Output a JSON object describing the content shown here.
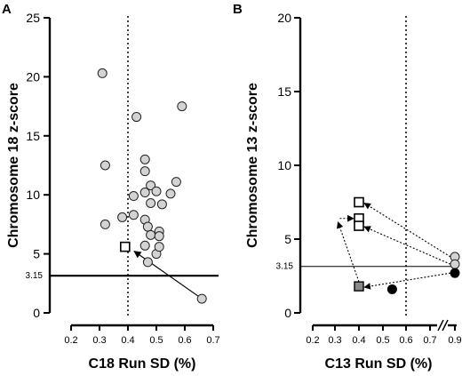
{
  "chart_data": [
    {
      "panel": "A",
      "type": "scatter",
      "xlabel": "C18 Run SD (%)",
      "ylabel": "Chromosome 18 z-score",
      "xlim": [
        0.2,
        0.7
      ],
      "ylim": [
        0,
        25
      ],
      "xticks": [
        "0.2",
        "0.3",
        "0.4",
        "0.5",
        "0.6",
        "0.7"
      ],
      "yticks": [
        "0",
        "5",
        "10",
        "15",
        "20",
        "25"
      ],
      "ref_line": {
        "y": 3.15,
        "label": "3.15"
      },
      "ref_vline": {
        "x": 0.4
      },
      "points": [
        {
          "x": 0.31,
          "y": 20.3
        },
        {
          "x": 0.32,
          "y": 12.5
        },
        {
          "x": 0.32,
          "y": 7.5
        },
        {
          "x": 0.38,
          "y": 8.1
        },
        {
          "x": 0.42,
          "y": 8.3
        },
        {
          "x": 0.42,
          "y": 9.9
        },
        {
          "x": 0.43,
          "y": 16.6
        },
        {
          "x": 0.46,
          "y": 13.0
        },
        {
          "x": 0.46,
          "y": 12.0
        },
        {
          "x": 0.46,
          "y": 10.2
        },
        {
          "x": 0.46,
          "y": 7.9
        },
        {
          "x": 0.47,
          "y": 7.3
        },
        {
          "x": 0.48,
          "y": 10.8
        },
        {
          "x": 0.48,
          "y": 9.3
        },
        {
          "x": 0.48,
          "y": 6.6
        },
        {
          "x": 0.46,
          "y": 5.7
        },
        {
          "x": 0.47,
          "y": 4.3
        },
        {
          "x": 0.5,
          "y": 10.3
        },
        {
          "x": 0.5,
          "y": 5.0
        },
        {
          "x": 0.51,
          "y": 6.9
        },
        {
          "x": 0.51,
          "y": 6.5
        },
        {
          "x": 0.51,
          "y": 5.6
        },
        {
          "x": 0.52,
          "y": 9.2
        },
        {
          "x": 0.55,
          "y": 10.1
        },
        {
          "x": 0.57,
          "y": 11.1
        },
        {
          "x": 0.59,
          "y": 17.5
        },
        {
          "x": 0.66,
          "y": 1.2
        }
      ],
      "special_points": [
        {
          "x": 0.39,
          "y": 5.6,
          "marker": "open-square"
        }
      ],
      "arrows": [
        {
          "from": [
            0.66,
            1.2
          ],
          "to": [
            0.4,
            5.6
          ]
        }
      ]
    },
    {
      "panel": "B",
      "type": "scatter",
      "xlabel": "C13 Run SD (%)",
      "ylabel": "Chromosome 13 z-score",
      "xlim": [
        0.2,
        0.9
      ],
      "ylim": [
        0,
        20
      ],
      "xticks": [
        "0.2",
        "0.3",
        "0.4",
        "0.5",
        "0.6",
        "0.7",
        "0.9"
      ],
      "yticks": [
        "0",
        "5",
        "10",
        "15",
        "20"
      ],
      "axis_break": "//",
      "ref_line": {
        "y": 3.15,
        "label": "3.15"
      },
      "ref_vline": {
        "x": 0.6
      },
      "points": [
        {
          "x": 0.9,
          "y": 3.8,
          "marker": "gray-circle"
        },
        {
          "x": 0.9,
          "y": 3.3,
          "marker": "gray-circle"
        },
        {
          "x": 0.9,
          "y": 2.7,
          "marker": "black-circle"
        },
        {
          "x": 0.54,
          "y": 1.6,
          "marker": "black-circle"
        },
        {
          "x": 0.4,
          "y": 7.5,
          "marker": "open-square"
        },
        {
          "x": 0.4,
          "y": 6.4,
          "marker": "open-square"
        },
        {
          "x": 0.4,
          "y": 5.9,
          "marker": "open-square"
        },
        {
          "x": 0.4,
          "y": 1.8,
          "marker": "gray-square"
        }
      ],
      "arrows": [
        {
          "from": [
            0.9,
            3.8
          ],
          "to": [
            0.4,
            7.5
          ],
          "style": "dotted"
        },
        {
          "from": [
            0.9,
            3.3
          ],
          "to": [
            0.4,
            5.9
          ],
          "style": "dotted"
        },
        {
          "from": [
            0.9,
            2.7
          ],
          "to": [
            0.4,
            1.8
          ],
          "style": "dotted"
        },
        {
          "from": [
            0.4,
            1.8
          ],
          "to": [
            0.32,
            6.4
          ],
          "style": "dotted"
        },
        {
          "from": [
            0.32,
            6.4
          ],
          "to": [
            0.4,
            6.4
          ],
          "style": "dotted"
        }
      ]
    }
  ]
}
